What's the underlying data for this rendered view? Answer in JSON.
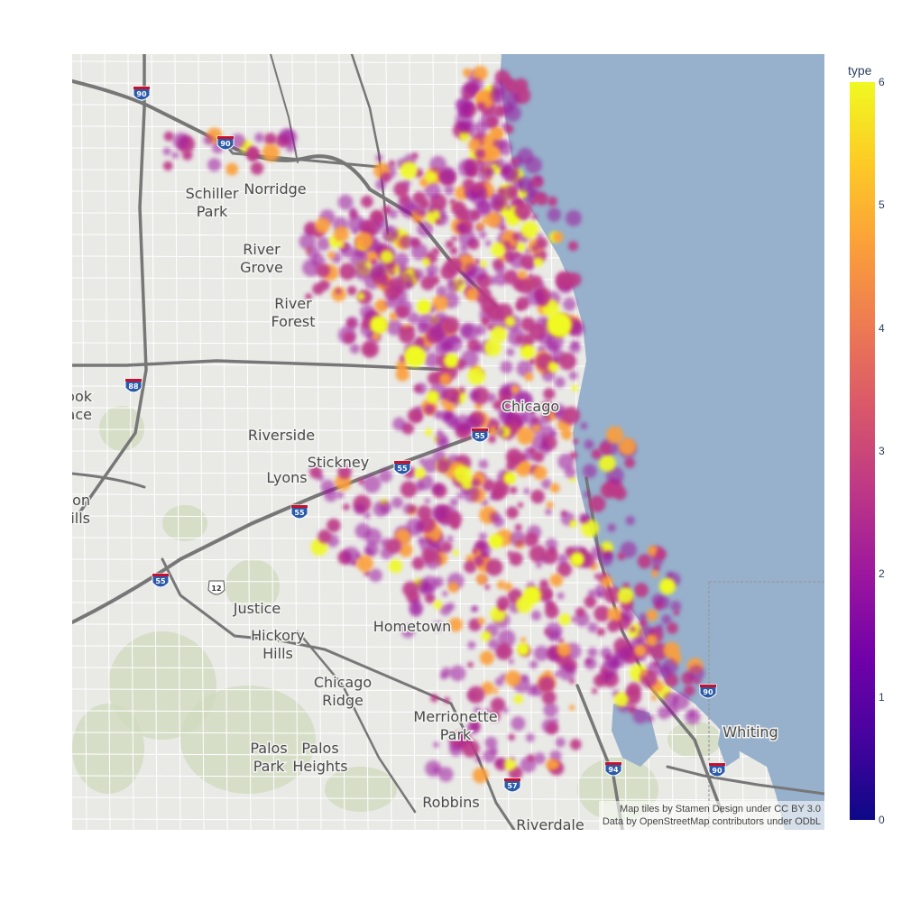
{
  "chart_data": {
    "type": "density_mapbox",
    "colorbar": {
      "title": "type",
      "range": [
        0,
        6
      ],
      "ticks": [
        "0",
        "1",
        "2",
        "3",
        "4",
        "5",
        "6"
      ],
      "colorscale": [
        "#0d0887",
        "#46039f",
        "#7201a8",
        "#9c179e",
        "#bd3786",
        "#d8576b",
        "#ed7953",
        "#fb9f3a",
        "#fdca26",
        "#f0f921"
      ]
    }
  },
  "map": {
    "water_color": "#97b0cb",
    "land_color": "#e9e9e6",
    "labels": [
      {
        "id": "schiller-park",
        "lines": [
          "Schiller",
          "Park"
        ]
      },
      {
        "id": "norridge",
        "lines": [
          "Norridge"
        ]
      },
      {
        "id": "river-grove",
        "lines": [
          "River",
          "Grove"
        ]
      },
      {
        "id": "river-forest",
        "lines": [
          "River",
          "Forest"
        ]
      },
      {
        "id": "westbrook-terrace",
        "lines": [
          "brook",
          "race"
        ]
      },
      {
        "id": "riverside",
        "lines": [
          "Riverside"
        ]
      },
      {
        "id": "stickney",
        "lines": [
          "Stickney"
        ]
      },
      {
        "id": "lyons",
        "lines": [
          "Lyons"
        ]
      },
      {
        "id": "clarendon-hills",
        "lines": [
          "arendon",
          "Hills"
        ]
      },
      {
        "id": "chicago",
        "lines": [
          "Chicago"
        ]
      },
      {
        "id": "justice",
        "lines": [
          "Justice"
        ]
      },
      {
        "id": "hickory-hills",
        "lines": [
          "Hickory",
          "Hills"
        ]
      },
      {
        "id": "hometown",
        "lines": [
          "Hometown"
        ]
      },
      {
        "id": "chicago-ridge",
        "lines": [
          "Chicago",
          "Ridge"
        ]
      },
      {
        "id": "merrionette-park",
        "lines": [
          "Merrionette",
          "Park"
        ]
      },
      {
        "id": "palos-park",
        "lines": [
          "Palos",
          "Park"
        ]
      },
      {
        "id": "palos-heights",
        "lines": [
          "Palos",
          "Heights"
        ]
      },
      {
        "id": "robbins",
        "lines": [
          "Robbins"
        ]
      },
      {
        "id": "riverdale",
        "lines": [
          "Riverdale"
        ]
      },
      {
        "id": "whiting",
        "lines": [
          "Whiting"
        ]
      }
    ],
    "shields": [
      {
        "id": "i90-a",
        "text": "90"
      },
      {
        "id": "i90-b",
        "text": "90"
      },
      {
        "id": "i88",
        "text": "88"
      },
      {
        "id": "i55-a",
        "text": "55"
      },
      {
        "id": "i55-b",
        "text": "55"
      },
      {
        "id": "i55-c",
        "text": "55"
      },
      {
        "id": "i55-d",
        "text": "55"
      },
      {
        "id": "us12",
        "text": "12"
      },
      {
        "id": "i57",
        "text": "57"
      },
      {
        "id": "i94",
        "text": "94"
      },
      {
        "id": "i90-c",
        "text": "90"
      },
      {
        "id": "i90-d",
        "text": "90"
      }
    ]
  },
  "attribution": {
    "line1": "Map tiles by Stamen Design under CC BY 3.0",
    "line2": "Data by OpenStreetMap contributors under ODbL"
  }
}
